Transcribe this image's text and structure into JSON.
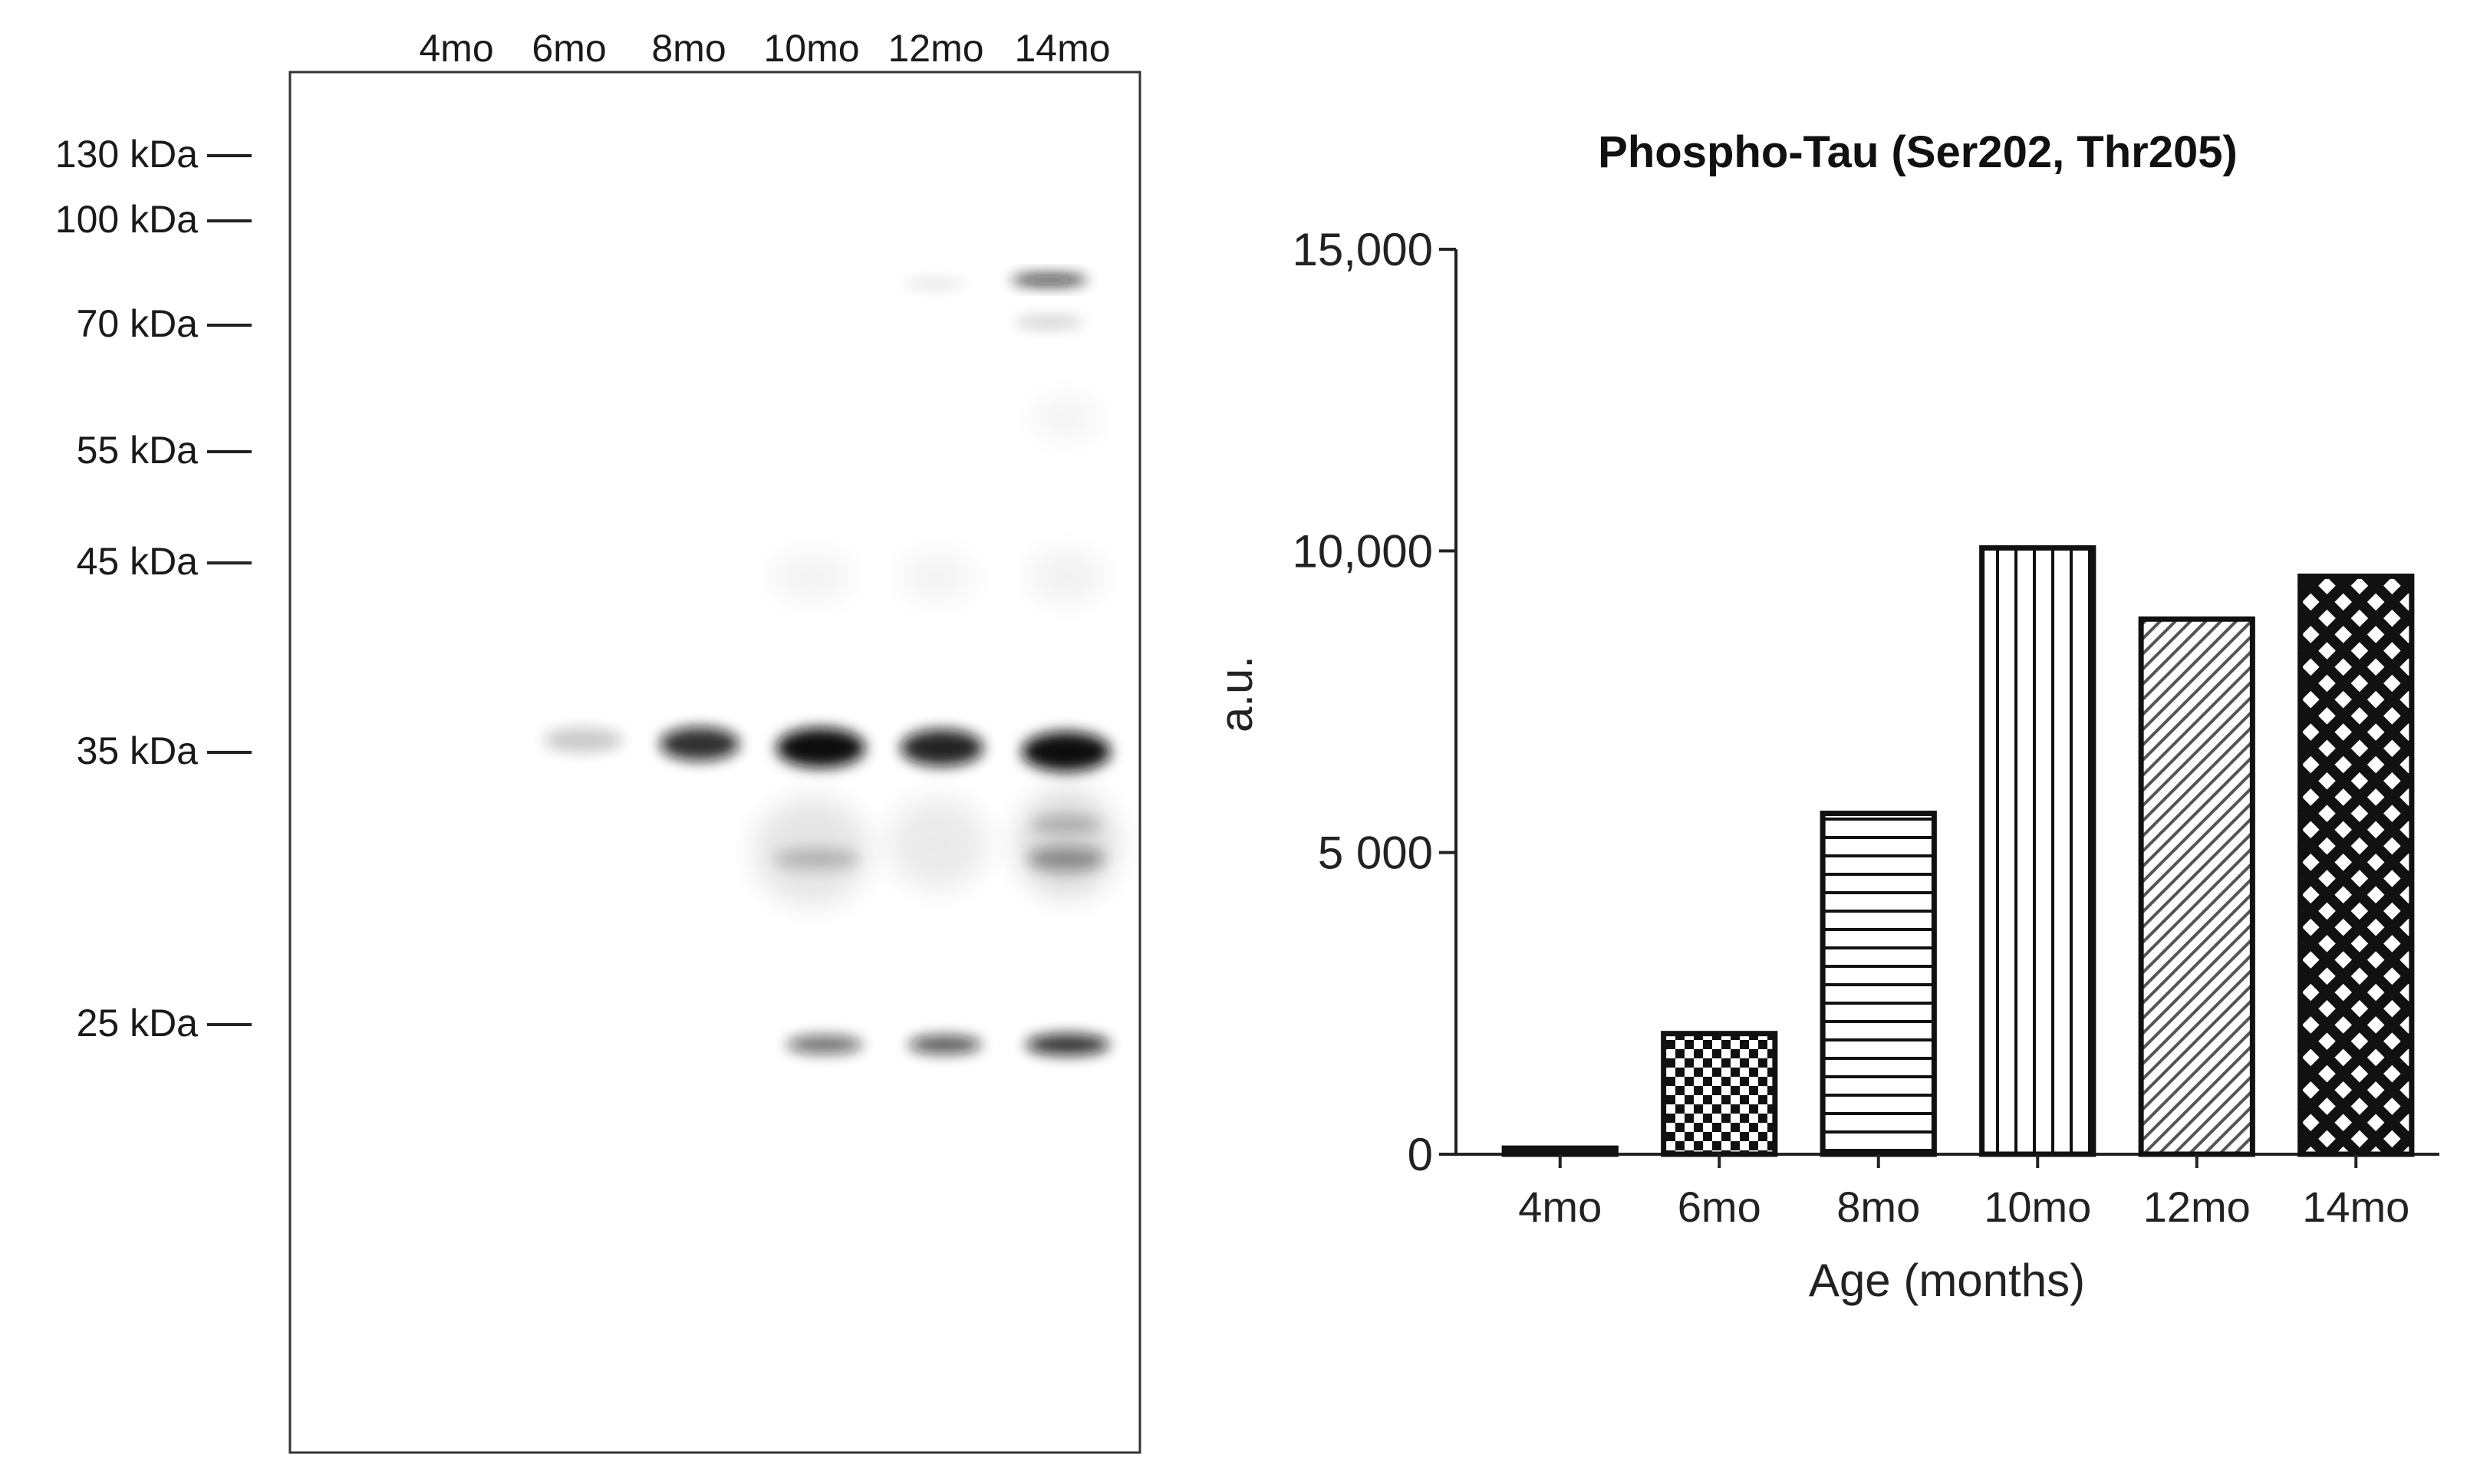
{
  "blot": {
    "lane_labels": [
      "4mo",
      "6mo",
      "8mo",
      "10mo",
      "12mo",
      "14mo"
    ],
    "markers": [
      "130 kDa",
      "100 kDa",
      "70 kDa",
      "55 kDa",
      "45 kDa",
      "35 kDa",
      "25 kDa"
    ],
    "band_color": "#111111"
  },
  "chart_data": {
    "type": "bar",
    "title": "Phospho-Tau (Ser202, Thr205)",
    "xlabel": "Age (months)",
    "ylabel": "a.u.",
    "categories": [
      "4mo",
      "6mo",
      "8mo",
      "10mo",
      "12mo",
      "14mo"
    ],
    "values": [
      100,
      2000,
      5650,
      10050,
      8870,
      9580
    ],
    "patterns": [
      "solid",
      "checker",
      "horizontal-lines",
      "vertical-lines",
      "diagonal-lines",
      "diamond-crosshatch"
    ],
    "ylim": [
      0,
      15000
    ],
    "yticks": [
      0,
      5000,
      10000,
      15000
    ],
    "ytick_labels": [
      "0",
      "5 000",
      "10,000",
      "15,000"
    ],
    "grid": false,
    "legend": "none",
    "bar_edge_color": "#111111"
  }
}
